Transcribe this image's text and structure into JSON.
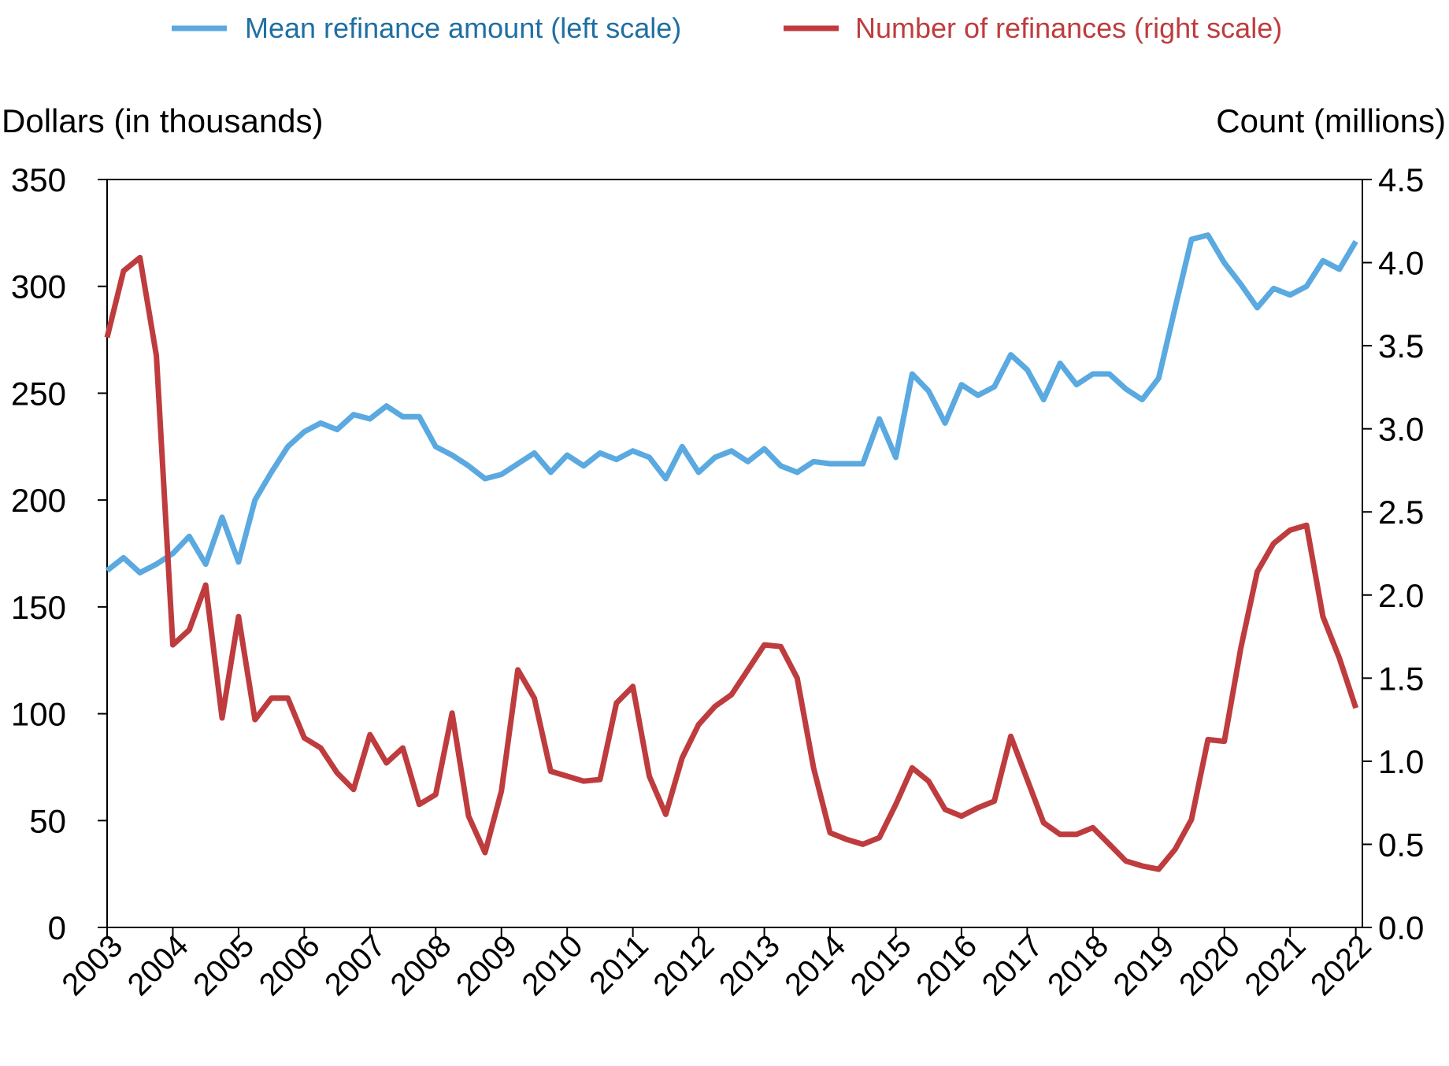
{
  "chart_data": {
    "type": "line",
    "title": "",
    "legend": {
      "placement": "top",
      "entries": [
        {
          "label": "Mean refinance amount (left scale)",
          "color": "#5aa9e0"
        },
        {
          "label": "Number of refinances (right scale)",
          "color": "#be3c3e"
        }
      ]
    },
    "y_left": {
      "label": "Dollars (in thousands)",
      "range": [
        0,
        350
      ],
      "ticks": [
        0,
        50,
        100,
        150,
        200,
        250,
        300,
        350
      ],
      "tick_labels": [
        "0",
        "50",
        "100",
        "150",
        "200",
        "250",
        "300",
        "350"
      ]
    },
    "y_right": {
      "label": "Count (millions)",
      "range": [
        0,
        4.5
      ],
      "ticks": [
        0,
        0.5,
        1,
        1.5,
        2,
        2.5,
        3,
        3.5,
        4,
        4.5
      ],
      "tick_labels": [
        "0.0",
        "0.5",
        "1.0",
        "1.5",
        "2.0",
        "2.5",
        "3.0",
        "3.5",
        "4.0",
        "4.5"
      ]
    },
    "x_axis": {
      "range": [
        2003,
        2022.1
      ],
      "ticks": [
        2003,
        2004,
        2005,
        2006,
        2007,
        2008,
        2009,
        2010,
        2011,
        2012,
        2013,
        2014,
        2015,
        2016,
        2017,
        2018,
        2019,
        2020,
        2021,
        2022
      ],
      "tick_labels": [
        "2003",
        "2004",
        "2005",
        "2006",
        "2007",
        "2008",
        "2009",
        "2010",
        "2011",
        "2012",
        "2013",
        "2014",
        "2015",
        "2016",
        "2017",
        "2018",
        "2019",
        "2020",
        "2021",
        "2022"
      ]
    },
    "grid": false,
    "series": [
      {
        "name": "Mean refinance amount (left scale)",
        "axis": "left",
        "color": "#5aa9e0",
        "x": [
          2003.0,
          2003.25,
          2003.5,
          2003.75,
          2004.0,
          2004.25,
          2004.5,
          2004.75,
          2005.0,
          2005.25,
          2005.5,
          2005.75,
          2006.0,
          2006.25,
          2006.5,
          2006.75,
          2007.0,
          2007.25,
          2007.5,
          2007.75,
          2008.0,
          2008.25,
          2008.5,
          2008.75,
          2009.0,
          2009.25,
          2009.5,
          2009.75,
          2010.0,
          2010.25,
          2010.5,
          2010.75,
          2011.0,
          2011.25,
          2011.5,
          2011.75,
          2012.0,
          2012.25,
          2012.5,
          2012.75,
          2013.0,
          2013.25,
          2013.5,
          2013.75,
          2014.0,
          2014.25,
          2014.5,
          2014.75,
          2015.0,
          2015.25,
          2015.5,
          2015.75,
          2016.0,
          2016.25,
          2016.5,
          2016.75,
          2017.0,
          2017.25,
          2017.5,
          2017.75,
          2018.0,
          2018.25,
          2018.5,
          2018.75,
          2019.0,
          2019.25,
          2019.5,
          2019.75,
          2020.0,
          2020.25,
          2020.5,
          2020.75,
          2021.0,
          2021.25,
          2021.5,
          2021.75,
          2022.0
        ],
        "values": [
          167,
          173,
          166,
          170,
          175,
          183,
          170,
          192,
          171,
          200,
          213,
          225,
          232,
          236,
          233,
          240,
          238,
          244,
          239,
          239,
          225,
          221,
          216,
          210,
          212,
          217,
          222,
          213,
          221,
          216,
          222,
          219,
          223,
          220,
          210,
          225,
          213,
          220,
          223,
          218,
          224,
          216,
          213,
          218,
          217,
          217,
          217,
          238,
          220,
          259,
          251,
          236,
          254,
          249,
          253,
          268,
          261,
          247,
          264,
          254,
          259,
          259,
          252,
          247,
          257,
          290,
          322,
          324,
          311,
          301,
          290,
          299,
          296,
          300,
          312,
          308,
          321
        ]
      },
      {
        "name": "Number of refinances (right scale)",
        "axis": "right",
        "color": "#be3c3e",
        "x": [
          2003.0,
          2003.25,
          2003.5,
          2003.75,
          2004.0,
          2004.25,
          2004.5,
          2004.75,
          2005.0,
          2005.25,
          2005.5,
          2005.75,
          2006.0,
          2006.25,
          2006.5,
          2006.75,
          2007.0,
          2007.25,
          2007.5,
          2007.75,
          2008.0,
          2008.25,
          2008.5,
          2008.75,
          2009.0,
          2009.25,
          2009.5,
          2009.75,
          2010.0,
          2010.25,
          2010.5,
          2010.75,
          2011.0,
          2011.25,
          2011.5,
          2011.75,
          2012.0,
          2012.25,
          2012.5,
          2012.75,
          2013.0,
          2013.25,
          2013.5,
          2013.75,
          2014.0,
          2014.25,
          2014.5,
          2014.75,
          2015.0,
          2015.25,
          2015.5,
          2015.75,
          2016.0,
          2016.25,
          2016.5,
          2016.75,
          2017.0,
          2017.25,
          2017.5,
          2017.75,
          2018.0,
          2018.25,
          2018.5,
          2018.75,
          2019.0,
          2019.25,
          2019.5,
          2019.75,
          2020.0,
          2020.25,
          2020.5,
          2020.75,
          2021.0,
          2021.25,
          2021.5,
          2021.75,
          2022.0
        ],
        "values": [
          3.55,
          3.95,
          4.03,
          3.44,
          1.7,
          1.79,
          2.06,
          1.26,
          1.87,
          1.25,
          1.38,
          1.38,
          1.14,
          1.08,
          0.93,
          0.83,
          1.16,
          0.99,
          1.08,
          0.74,
          0.8,
          1.29,
          0.67,
          0.45,
          0.82,
          1.55,
          1.38,
          0.94,
          0.91,
          0.88,
          0.89,
          1.35,
          1.45,
          0.91,
          0.68,
          1.02,
          1.22,
          1.33,
          1.4,
          1.55,
          1.7,
          1.69,
          1.5,
          0.96,
          0.57,
          0.53,
          0.5,
          0.54,
          0.74,
          0.96,
          0.88,
          0.71,
          0.67,
          0.72,
          0.76,
          1.15,
          0.89,
          0.63,
          0.56,
          0.56,
          0.6,
          0.5,
          0.4,
          0.37,
          0.35,
          0.47,
          0.65,
          1.13,
          1.12,
          1.68,
          2.14,
          2.31,
          2.39,
          2.42,
          1.87,
          1.62,
          1.32
        ]
      }
    ]
  }
}
